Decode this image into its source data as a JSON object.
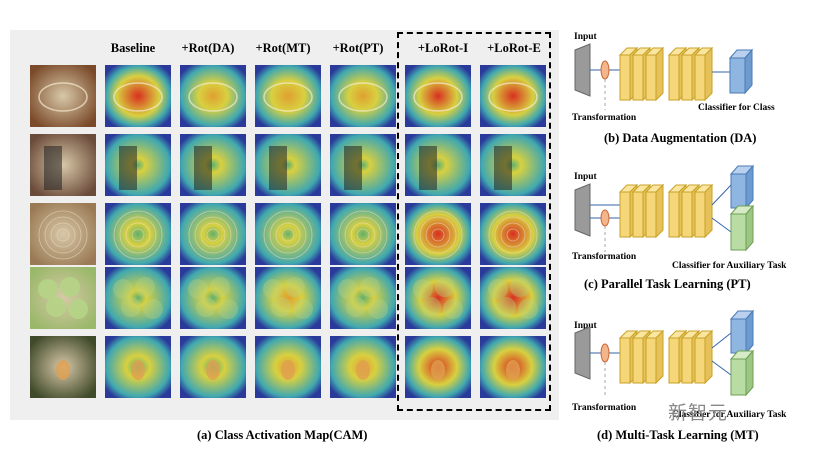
{
  "columns": [
    "Baseline",
    "+Rot(DA)",
    "+Rot(MT)",
    "+Rot(PT)",
    "+LoRot-I",
    "+LoRot-E"
  ],
  "rows": [
    "octopus",
    "man-with-instrument",
    "spiral-shell",
    "green-apples",
    "bird-on-branch"
  ],
  "captions": {
    "a": "(a) Class Activation Map(CAM)",
    "b": "(b) Data Augmentation (DA)",
    "c": "(c) Parallel Task Learning (PT)",
    "d": "(d) Multi-Task Learning (MT)"
  },
  "diagrams": {
    "b": {
      "input": "Input",
      "transformation": "Transformation",
      "classifier": "Classifier for Class"
    },
    "c": {
      "input": "Input",
      "transformation": "Transformation",
      "classifier": "Classifier for Auxiliary Task"
    },
    "d": {
      "input": "Input",
      "transformation": "Transformation",
      "classifier": "Classifier for Auxiliary Task"
    }
  },
  "watermark": "新智元",
  "colors": {
    "block": "#f5d77a",
    "block_border": "#c9a227",
    "blue": "#8fb6e0",
    "green": "#b9dca4",
    "input": "#9a9a9a",
    "circle": "#f3b58a"
  }
}
